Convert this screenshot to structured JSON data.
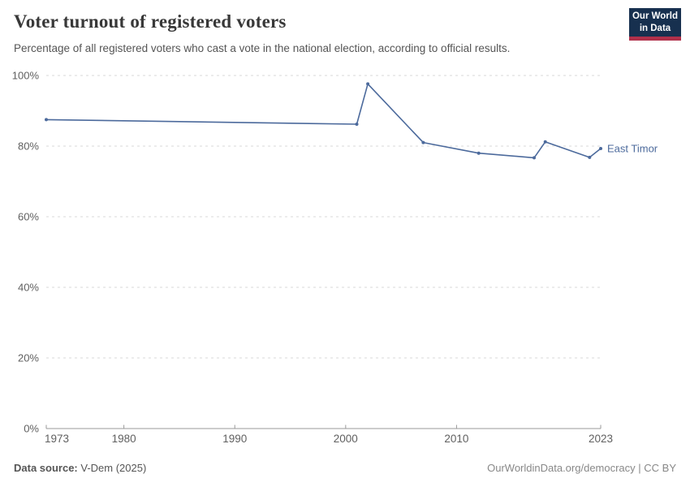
{
  "header": {
    "title": "Voter turnout of registered voters",
    "subtitle": "Percentage of all registered voters who cast a vote in the national election, according to official results.",
    "logo": {
      "line1": "Our World",
      "line2": "in Data"
    }
  },
  "footer": {
    "source_label": "Data source:",
    "source_value": " V-Dem (2025)",
    "attribution": "OurWorldinData.org/democracy | CC BY"
  },
  "colors": {
    "line": "#4c6a9c",
    "marker": "#4c6a9c",
    "entity_label": "#4c6a9c",
    "grid": "#d9d9d9",
    "axis": "#999999",
    "tick_text": "#606060",
    "logo_bg": "#17304f",
    "logo_red": "#b0304a"
  },
  "chart_data": {
    "type": "line",
    "title": "Voter turnout of registered voters",
    "entity": "East Timor",
    "unit": "%",
    "x": [
      1973,
      2001,
      2002,
      2007,
      2012,
      2017,
      2018,
      2022,
      2023
    ],
    "values": [
      87.5,
      86.2,
      97.6,
      81,
      78,
      76.7,
      81.2,
      76.8,
      79.3
    ],
    "xlim": [
      1973,
      2023
    ],
    "ylim": [
      0,
      100
    ],
    "xticks": [
      1973,
      1980,
      1990,
      2000,
      2010,
      2023
    ],
    "xtick_labels": [
      "1973",
      "1980",
      "1990",
      "2000",
      "2010",
      "2023"
    ],
    "yticks": [
      0,
      20,
      40,
      60,
      80,
      100
    ],
    "ytick_labels": [
      "0%",
      "20%",
      "40%",
      "60%",
      "80%",
      "100%"
    ],
    "grid": "horizontal-dashed",
    "legend_position": "end-of-line-label"
  }
}
